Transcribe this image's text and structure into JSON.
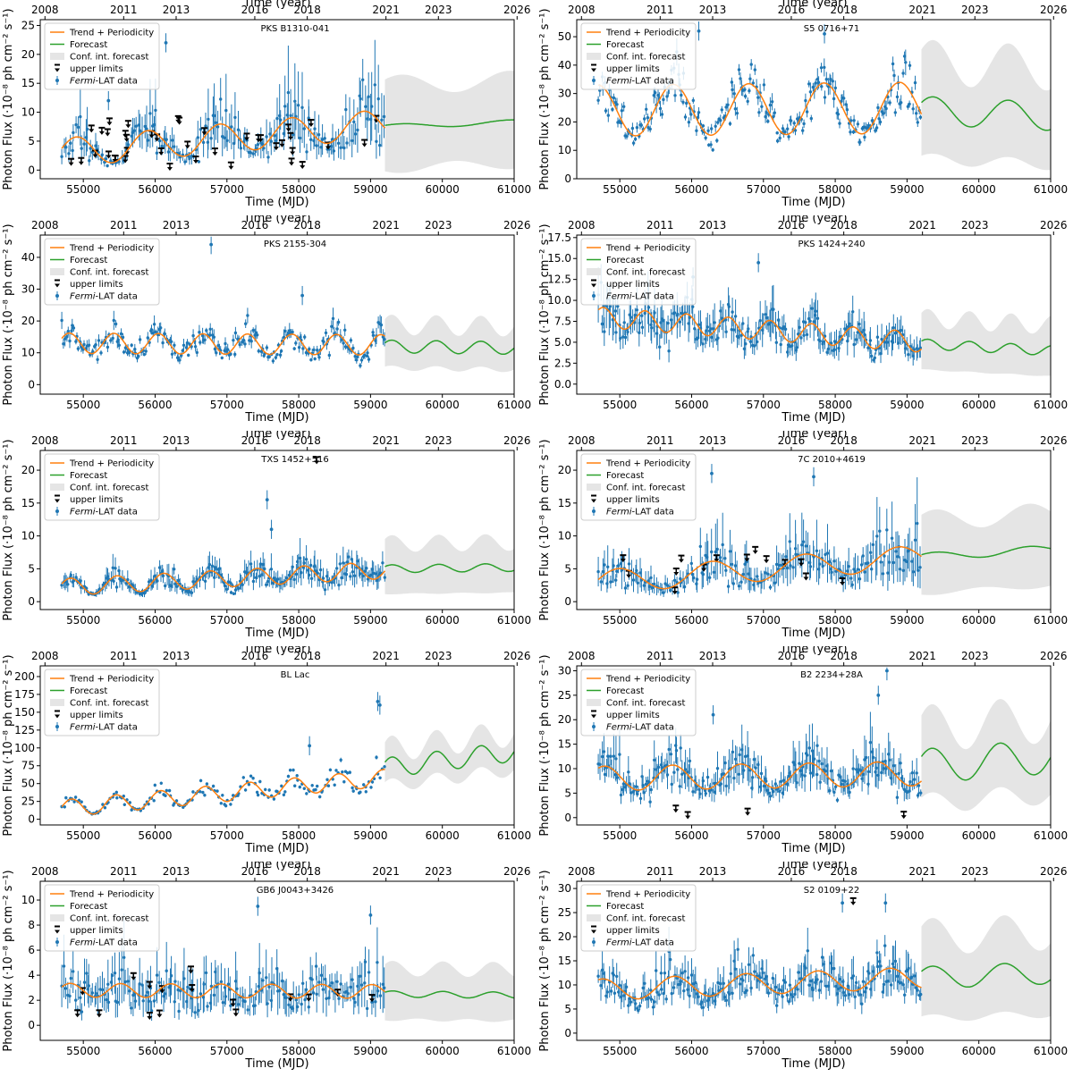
{
  "figure": {
    "common": {
      "xlabel": "Time (MJD)",
      "x2label": "Time (year)",
      "ylabel": "Photon Flux",
      "yunit": "(·10⁻⁸ ph cm⁻² s⁻¹)",
      "x_ticks": [
        "55000",
        "56000",
        "57000",
        "58000",
        "59000",
        "60000",
        "61000"
      ],
      "year_ticks": [
        "2008",
        "2011",
        "2013",
        "2016",
        "2018",
        "2021",
        "2023",
        "2026"
      ],
      "legend": {
        "trend": "Trend + Periodicity",
        "forecast": "Forecast",
        "conf": "Conf. int. forecast",
        "ul": "upper limits",
        "fermi_italic": "Fermi",
        "fermi_rest": "-LAT data"
      },
      "colors": {
        "data": "#1f77b4",
        "trend": "#ff7f0e",
        "forecast": "#2ca02c",
        "conf": "#e5e5e5",
        "ul": "#000000"
      }
    }
  },
  "chart_data": [
    {
      "type": "line",
      "source": "PKS B1310-041",
      "xlim": [
        54400,
        61000
      ],
      "ylim": [
        -1.5,
        26
      ],
      "yticks": [
        "0",
        "5",
        "10",
        "15",
        "20",
        "25"
      ],
      "seed": 11,
      "trend": {
        "base": [
          3.0,
          8.0
        ],
        "amp": 2.5,
        "period": 1000,
        "phase": 0.3
      },
      "forecast": {
        "level": [
          7.5,
          8.3
        ],
        "amp": 0.4,
        "period": 1500
      },
      "conf_halfwidth": 8.5,
      "scatter_rel": 0.45,
      "err_rel": 0.45,
      "n_points": 170,
      "ul": {
        "count": 40,
        "range": [
          1,
          9.5
        ]
      },
      "outliers": [
        [
          56150,
          22
        ],
        [
          55350,
          12
        ]
      ]
    },
    {
      "type": "line",
      "source": "S5 0716+71",
      "xlim": [
        54400,
        61000
      ],
      "ylim": [
        0,
        56
      ],
      "yticks": [
        "0",
        "10",
        "20",
        "30",
        "40",
        "50"
      ],
      "seed": 23,
      "trend": {
        "base": [
          24,
          25
        ],
        "amp": 9,
        "period": 1050,
        "phase": 1.6
      },
      "forecast": {
        "level": [
          24,
          22
        ],
        "amp": 5,
        "period": 1050
      },
      "conf_halfwidth": 20,
      "scatter_rel": 0.25,
      "err_rel": 0.08,
      "n_points": 220,
      "ul": {
        "count": 0,
        "range": [
          0,
          0
        ]
      },
      "outliers": [
        [
          56100,
          52
        ],
        [
          57850,
          51
        ]
      ]
    },
    {
      "type": "line",
      "source": "PKS 2155-304",
      "xlim": [
        54400,
        61000
      ],
      "ylim": [
        -3,
        47
      ],
      "yticks": [
        "0",
        "10",
        "20",
        "30",
        "40"
      ],
      "seed": 37,
      "trend": {
        "base": [
          13,
          12.5
        ],
        "amp": 3.2,
        "period": 620,
        "phase": 0.5
      },
      "forecast": {
        "level": [
          12,
          11.5
        ],
        "amp": 2,
        "period": 620
      },
      "conf_halfwidth": 8,
      "scatter_rel": 0.25,
      "err_rel": 0.12,
      "n_points": 220,
      "ul": {
        "count": 0,
        "range": [
          0,
          0
        ]
      },
      "outliers": [
        [
          56780,
          44
        ],
        [
          58050,
          28
        ]
      ]
    },
    {
      "type": "line",
      "source": "PKS 1424+240",
      "xlim": [
        54400,
        61000
      ],
      "ylim": [
        -1.2,
        17.8
      ],
      "yticks": [
        "0.0",
        "2.5",
        "5.0",
        "7.5",
        "10.0",
        "12.5",
        "15.0",
        "17.5"
      ],
      "seed": 41,
      "trend": {
        "base": [
          8,
          5
        ],
        "amp": 1.2,
        "period": 580,
        "phase": 0.8
      },
      "forecast": {
        "level": [
          4.8,
          4.0
        ],
        "amp": 0.6,
        "period": 580
      },
      "conf_halfwidth": 3.6,
      "scatter_rel": 0.25,
      "err_rel": 0.25,
      "n_points": 220,
      "ul": {
        "count": 0,
        "range": [
          0,
          0
        ]
      },
      "outliers": [
        [
          56930,
          14.5
        ],
        [
          56020,
          12.8
        ]
      ]
    },
    {
      "type": "line",
      "source": "TXS 1452+516",
      "xlim": [
        54400,
        61000
      ],
      "ylim": [
        -1.2,
        23
      ],
      "yticks": [
        "0",
        "5",
        "10",
        "15",
        "20"
      ],
      "seed": 53,
      "trend": {
        "base": [
          2.2,
          4.8
        ],
        "amp": 1.3,
        "period": 650,
        "phase": 0.4
      },
      "forecast": {
        "level": [
          5.0,
          5.2
        ],
        "amp": 0.6,
        "period": 650
      },
      "conf_halfwidth": 4.5,
      "scatter_rel": 0.35,
      "err_rel": 0.35,
      "n_points": 220,
      "ul": {
        "count": 1,
        "range": [
          22,
          22
        ]
      },
      "outliers": [
        [
          57560,
          15.5
        ],
        [
          57620,
          11
        ]
      ]
    },
    {
      "type": "line",
      "source": "7C 2010+4619",
      "xlim": [
        54400,
        61000
      ],
      "ylim": [
        -1.2,
        23
      ],
      "yticks": [
        "0",
        "5",
        "10",
        "15",
        "20"
      ],
      "seed": 67,
      "trend": {
        "base": [
          3,
          6.8
        ],
        "amp": 1.8,
        "period": 1300,
        "phase": 0.2
      },
      "forecast": {
        "level": [
          6.8,
          8.0
        ],
        "amp": 0.6,
        "period": 1300
      },
      "conf_halfwidth": 6.5,
      "scatter_rel": 0.45,
      "err_rel": 0.45,
      "n_points": 180,
      "ul": {
        "count": 14,
        "range": [
          1.5,
          9.5
        ]
      },
      "outliers": [
        [
          56280,
          19.5
        ],
        [
          57700,
          19
        ]
      ]
    },
    {
      "type": "line",
      "source": "BL Lac",
      "xlim": [
        54400,
        61000
      ],
      "ylim": [
        -8,
        215
      ],
      "yticks": [
        "0",
        "25",
        "50",
        "75",
        "100",
        "125",
        "150",
        "175",
        "200"
      ],
      "seed": 71,
      "trend": {
        "base": [
          15,
          58
        ],
        "amp": 12,
        "period": 620,
        "phase": 0.2
      },
      "forecast": {
        "level": [
          72,
          95
        ],
        "amp": 14,
        "period": 620
      },
      "conf_halfwidth": 30,
      "scatter_rel": 0.25,
      "err_rel": 0.03,
      "n_points": 170,
      "ul": {
        "count": 0,
        "range": [
          0,
          0
        ]
      },
      "outliers": [
        [
          59100,
          165
        ],
        [
          59130,
          160
        ],
        [
          58150,
          103
        ]
      ]
    },
    {
      "type": "line",
      "source": "B2 2234+28A",
      "xlim": [
        54400,
        61000
      ],
      "ylim": [
        -1.5,
        31
      ],
      "yticks": [
        "0",
        "5",
        "10",
        "15",
        "20",
        "25",
        "30"
      ],
      "seed": 83,
      "trend": {
        "base": [
          8,
          9
        ],
        "amp": 2.5,
        "period": 950,
        "phase": 1.0
      },
      "forecast": {
        "level": [
          10.5,
          12.5
        ],
        "amp": 3.5,
        "period": 950
      },
      "conf_halfwidth": 9,
      "scatter_rel": 0.35,
      "err_rel": 0.3,
      "n_points": 220,
      "ul": {
        "count": 4,
        "range": [
          1,
          3
        ]
      },
      "outliers": [
        [
          58720,
          30
        ],
        [
          58600,
          25
        ],
        [
          56300,
          21
        ]
      ]
    },
    {
      "type": "line",
      "source": "GB6 J0043+3426",
      "xlim": [
        54400,
        61000
      ],
      "ylim": [
        -1.2,
        11.5
      ],
      "yticks": [
        "0",
        "2",
        "4",
        "6",
        "8",
        "10"
      ],
      "seed": 97,
      "trend": {
        "base": [
          2.8,
          2.7
        ],
        "amp": 0.55,
        "period": 700,
        "phase": 0.5
      },
      "forecast": {
        "level": [
          2.5,
          2.4
        ],
        "amp": 0.25,
        "period": 700
      },
      "conf_halfwidth": 2.4,
      "scatter_rel": 0.5,
      "err_rel": 0.5,
      "n_points": 180,
      "ul": {
        "count": 16,
        "range": [
          0.8,
          4.7
        ]
      },
      "outliers": [
        [
          57430,
          9.5
        ],
        [
          59000,
          8.8
        ]
      ]
    },
    {
      "type": "line",
      "source": "S2 0109+22",
      "xlim": [
        54400,
        61000
      ],
      "ylim": [
        -1.5,
        31.5
      ],
      "yticks": [
        "0",
        "5",
        "10",
        "15",
        "20",
        "25",
        "30"
      ],
      "seed": 109,
      "trend": {
        "base": [
          9,
          11.5
        ],
        "amp": 2.2,
        "period": 1000,
        "phase": 1.2
      },
      "forecast": {
        "level": [
          11.5,
          12.5
        ],
        "amp": 2.3,
        "period": 1000
      },
      "conf_halfwidth": 10,
      "scatter_rel": 0.3,
      "err_rel": 0.25,
      "n_points": 220,
      "ul": {
        "count": 1,
        "range": [
          28,
          28
        ]
      },
      "outliers": [
        [
          58100,
          27
        ],
        [
          58700,
          27
        ]
      ]
    }
  ]
}
